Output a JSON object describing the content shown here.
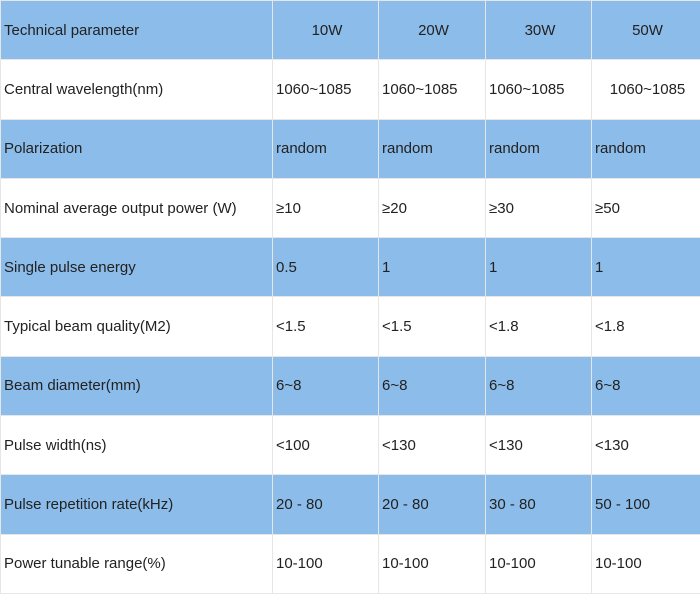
{
  "header": {
    "label": "Technical parameter",
    "models": [
      "10W",
      "20W",
      "30W",
      "50W"
    ]
  },
  "rows": [
    {
      "label": "Central wavelength(nm)",
      "values": [
        "1060~1085",
        "1060~1085",
        "1060~1085",
        "1060~1085"
      ]
    },
    {
      "label": "Polarization",
      "values": [
        "random",
        "random",
        "random",
        "random"
      ]
    },
    {
      "label": "Nominal average output power (W)",
      "values": [
        "≥10",
        "≥20",
        "≥30",
        "≥50"
      ]
    },
    {
      "label": "Single pulse energy",
      "values": [
        "0.5",
        "1",
        "1",
        "1"
      ]
    },
    {
      "label": "Typical beam quality(M2)",
      "values": [
        "<1.5",
        "<1.5",
        "<1.8",
        "<1.8"
      ]
    },
    {
      "label": "Beam diameter(mm)",
      "values": [
        "6~8",
        "6~8",
        "6~8",
        "6~8"
      ]
    },
    {
      "label": "Pulse width(ns)",
      "values": [
        "<100",
        "<130",
        "<130",
        "<130"
      ]
    },
    {
      "label": "Pulse repetition rate(kHz)",
      "values": [
        "20 - 80",
        "20 - 80",
        "30 - 80",
        "50 - 100"
      ]
    },
    {
      "label": "Power tunable range(%)",
      "values": [
        "10-100",
        "10-100",
        "10-100",
        "10-100"
      ]
    }
  ],
  "colors": {
    "row_blue": "#8cbcea",
    "row_white": "#ffffff",
    "grid": "#e6e6e6",
    "text": "#222222"
  }
}
